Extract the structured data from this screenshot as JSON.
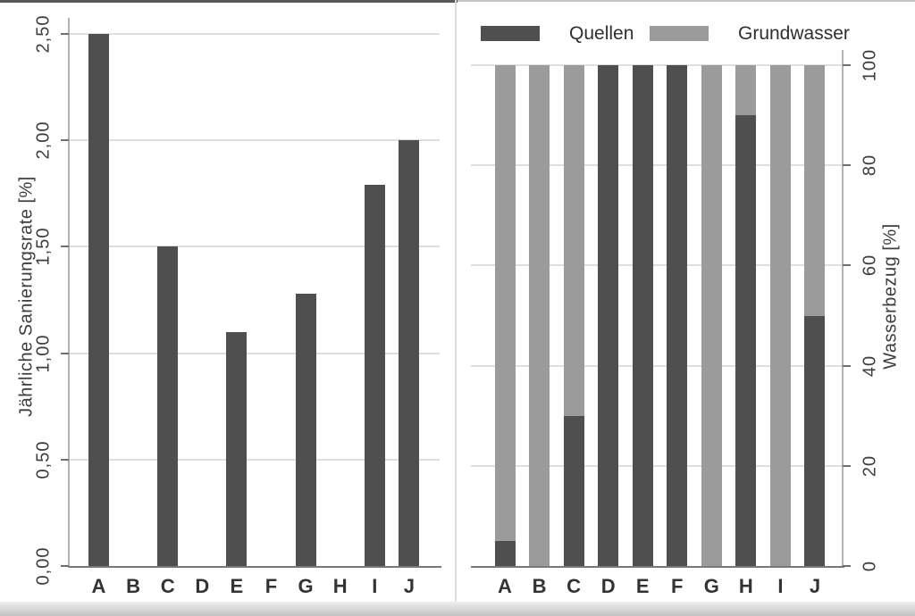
{
  "figure": {
    "background": "#ffffff"
  },
  "chart_data": [
    {
      "type": "bar",
      "panel": "left",
      "title": "",
      "xlabel": "",
      "ylabel": "Jährliche Sanierungsrate [%]",
      "categories": [
        "A",
        "B",
        "C",
        "D",
        "E",
        "F",
        "G",
        "H",
        "I",
        "J"
      ],
      "values": [
        2.5,
        0,
        1.5,
        0,
        1.1,
        0,
        1.28,
        0,
        1.79,
        2.0
      ],
      "ylim": [
        0,
        2.5
      ],
      "ytick_values": [
        0,
        0.5,
        1.0,
        1.5,
        2.0,
        2.5
      ],
      "ytick_labels": [
        "0,00",
        "0,50",
        "1,00",
        "1,50",
        "2,00",
        "2,50"
      ],
      "ytick_rotation": 90,
      "yaxis_side": "left",
      "grid": true,
      "bar_color": "#4f4f4f",
      "number_format": "decimal-comma"
    },
    {
      "type": "bar",
      "panel": "right",
      "stacked": true,
      "title": "",
      "xlabel": "",
      "ylabel": "Wasserbezug [%]",
      "categories": [
        "A",
        "B",
        "C",
        "D",
        "E",
        "F",
        "G",
        "H",
        "I",
        "J"
      ],
      "series": [
        {
          "name": "Quellen",
          "color": "#4f4f4f",
          "values": [
            5,
            0,
            30,
            100,
            100,
            100,
            0,
            90,
            0,
            50
          ]
        },
        {
          "name": "Grundwasser",
          "color": "#9b9b9b",
          "values": [
            95,
            100,
            70,
            0,
            0,
            0,
            100,
            10,
            100,
            50
          ]
        }
      ],
      "ylim": [
        0,
        100
      ],
      "ytick_values": [
        0,
        20,
        40,
        60,
        80,
        100
      ],
      "ytick_labels": [
        "0",
        "20",
        "40",
        "60",
        "80",
        "100"
      ],
      "ytick_rotation": 90,
      "yaxis_side": "right",
      "grid": true,
      "legend": {
        "position": "top",
        "entries": [
          "Quellen",
          "Grundwasser"
        ]
      }
    }
  ],
  "styles": {
    "bar_dark": "#4f4f4f",
    "bar_gray": "#9b9b9b",
    "grid_color": "#dfdfdf",
    "xaxis_line_color": "#787878",
    "yaxis_line_color": "#b3b3b3",
    "tick_color": "#6f6f6f",
    "text_color": "#3b3b3b"
  }
}
